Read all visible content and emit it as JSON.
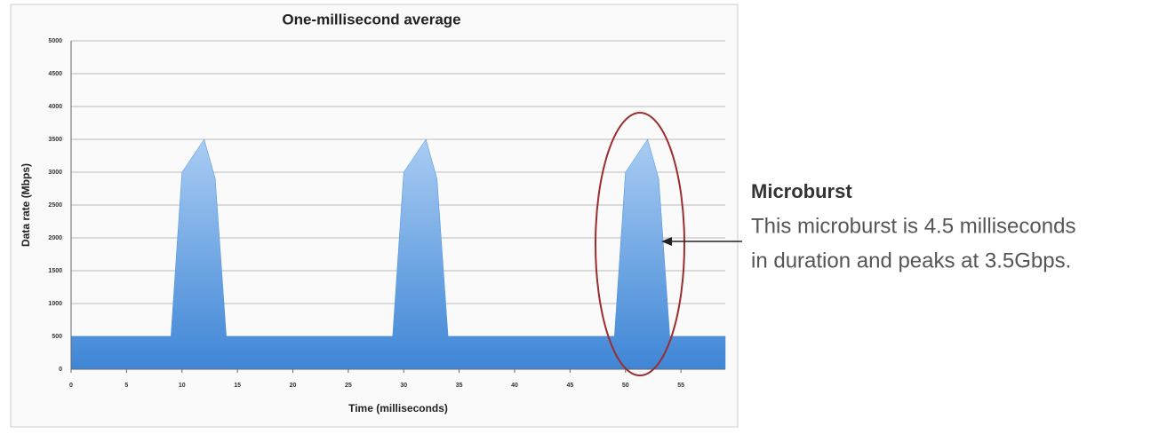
{
  "chart_data": {
    "type": "area",
    "title": "One-millisecond average",
    "x_label": "Time (milliseconds)",
    "y_label": "Data rate (Mbps)",
    "x": [
      0,
      9,
      10,
      12,
      13,
      14,
      29,
      30,
      32,
      33,
      34,
      49,
      50,
      52,
      53,
      54,
      59
    ],
    "values": [
      500,
      500,
      3000,
      3500,
      2900,
      500,
      500,
      3000,
      3500,
      2900,
      500,
      500,
      3000,
      3500,
      2900,
      500,
      500
    ],
    "color": "#4a8fdc",
    "xlim": [
      0,
      59
    ],
    "xticks": [
      0,
      5,
      10,
      15,
      20,
      25,
      30,
      35,
      40,
      45,
      50,
      55
    ],
    "ylim": [
      0,
      5000
    ],
    "yticks": [
      0,
      500,
      1000,
      1500,
      2000,
      2500,
      3000,
      3500,
      4000,
      4500,
      5000
    ],
    "grid": true
  },
  "annotation": {
    "title": "Microburst",
    "lines": [
      "This microburst is 4.5 milliseconds",
      "in duration and peaks at 3.5Gbps."
    ]
  }
}
